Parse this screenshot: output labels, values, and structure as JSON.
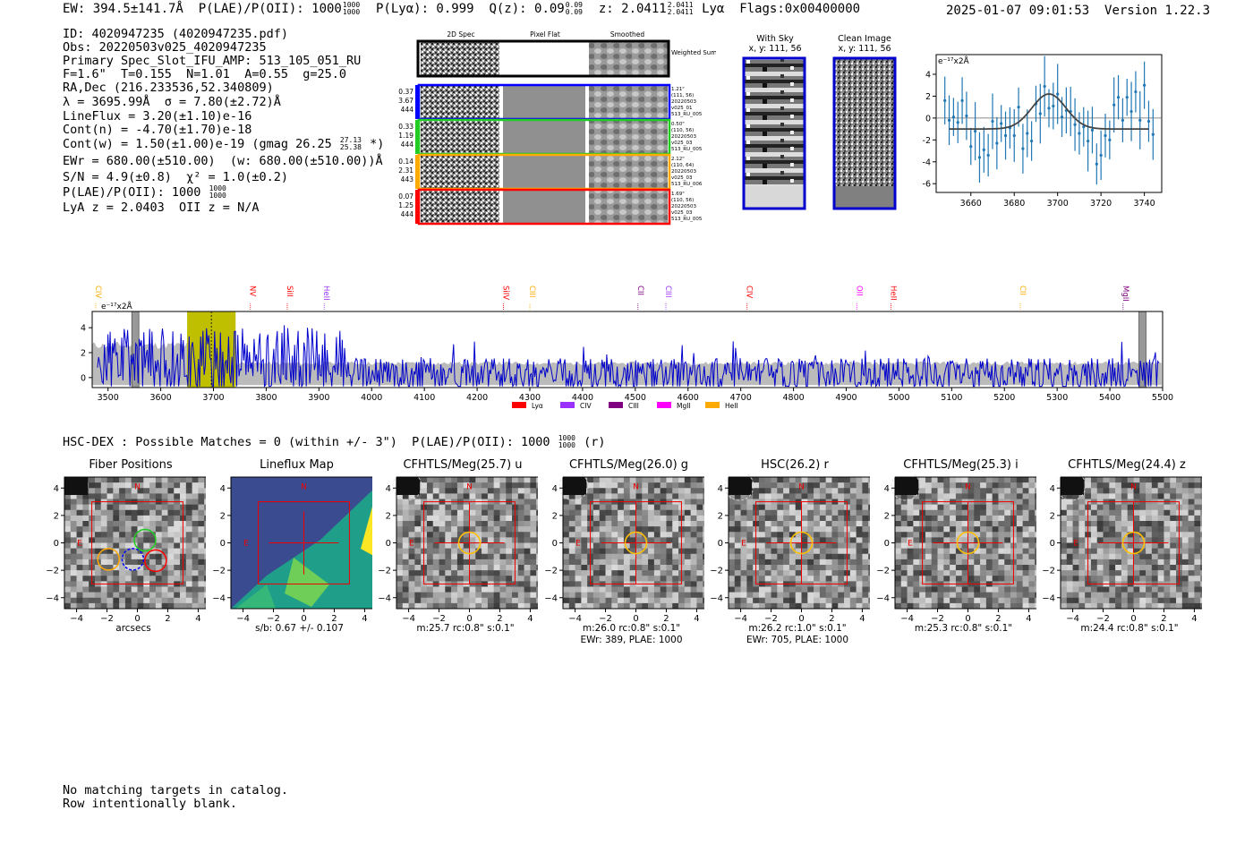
{
  "header": {
    "ew": "EW: 394.5±141.7Å",
    "plae_label": "P(LAE)/P(OII): 1000",
    "plae_hi": "1000",
    "plae_lo": "1000",
    "plya": "P(Lyα): 0.999",
    "qz_label": "Q(z): 0.09",
    "qz_hi": "0.09",
    "qz_lo": "0.09",
    "z_label": "z: 2.0411",
    "z_hi": "2.0411",
    "z_lo": "2.0411",
    "line_name": "Lyα",
    "flags": "Flags:0x00400000",
    "timestamp": "2025-01-07 09:01:53",
    "version": "Version 1.22.3"
  },
  "info": {
    "id": "ID: 4020947235 (4020947235.pdf)",
    "obs": "Obs: 20220503v025_4020947235",
    "primary": "Primary Spec_Slot_IFU_AMP: 513_105_051_RU",
    "fiber_params": "F=1.6\"  T=0.155  N=1.01  A=0.55  g=25.0",
    "radec": "RA,Dec (216.233536,52.340809)",
    "lambda_sigma": "λ = 3695.99Å  σ = 7.80(±2.72)Å",
    "lineflux": "LineFlux = 3.20(±1.10)e-16",
    "cont_n": "Cont(n) = -4.70(±1.70)e-18",
    "cont_w": "Cont(w) = 1.50(±1.00)e-19 (gmag 26.25",
    "gmag_hi": "27.13",
    "gmag_lo": "25.38",
    "cont_w_end": "*)",
    "ewr": "EWr = 680.00(±510.00)  (w: 680.00(±510.00))Å",
    "sn": "S/N = 4.9(±0.8)  χ² = 1.0(±0.2)",
    "plae": "P(LAE)/P(OII): 1000",
    "plae_hi": "1000",
    "plae_lo": "1000",
    "lya_z": "LyA z = 2.0403  OII z = N/A"
  },
  "cutout_panel": {
    "col_titles": [
      "2D Spec",
      "Pixel Flat",
      "Smoothed"
    ],
    "weighted_label": "Weighted Sum",
    "rows": [
      {
        "left": [
          "0.37",
          "3.67",
          "444"
        ],
        "right": [
          "1.21\"",
          "(111, 56)",
          "20220503",
          "v025_01",
          "513_RU_005"
        ],
        "color": "#0000ff"
      },
      {
        "left": [
          "0.33",
          "1.19",
          "444"
        ],
        "right": [
          "0.50\"",
          "(110, 56)",
          "20220503",
          "v025_03",
          "513_RU_005"
        ],
        "color": "#22cc22"
      },
      {
        "left": [
          "0.14",
          "2.31",
          "443"
        ],
        "right": [
          "2.12\"",
          "(110, 64)",
          "20220503",
          "v025_03",
          "513_RU_006"
        ],
        "color": "#ffaa00"
      },
      {
        "left": [
          "0.07",
          "1.25",
          "444"
        ],
        "right": [
          "1.69\"",
          "(110, 56)",
          "20220503",
          "v025_03",
          "513_RU_005"
        ],
        "color": "#ff0000"
      }
    ]
  },
  "sky_panel": {
    "with_sky_title": "With Sky",
    "with_sky_coord": "x, y: 111, 56",
    "clean_title": "Clean Image",
    "clean_coord": "x, y: 111, 56"
  },
  "zoom_plot": {
    "ylabel": "e⁻¹⁷x2Å",
    "xticks": [
      "3660",
      "3680",
      "3700",
      "3720",
      "3740"
    ],
    "yticks": [
      "4",
      "2",
      "0",
      "-2",
      "-4",
      "-6"
    ],
    "colors": {
      "points": "#1f77b4",
      "fit": "#444444"
    },
    "xlim": [
      3644,
      3748
    ],
    "ylim": [
      -6.8,
      5.8
    ],
    "points": [
      {
        "x": 3648,
        "y": 1.6
      },
      {
        "x": 3650,
        "y": -0.2
      },
      {
        "x": 3652,
        "y": 0.1
      },
      {
        "x": 3654,
        "y": -0.4
      },
      {
        "x": 3656,
        "y": 1.6
      },
      {
        "x": 3658,
        "y": 0.2
      },
      {
        "x": 3660,
        "y": -2.6
      },
      {
        "x": 3662,
        "y": -1.2
      },
      {
        "x": 3664,
        "y": -3.6
      },
      {
        "x": 3666,
        "y": -2.9
      },
      {
        "x": 3668,
        "y": -3.4
      },
      {
        "x": 3670,
        "y": -0.3
      },
      {
        "x": 3672,
        "y": -2.3
      },
      {
        "x": 3674,
        "y": -0.5
      },
      {
        "x": 3676,
        "y": -1.6
      },
      {
        "x": 3678,
        "y": -0.9
      },
      {
        "x": 3680,
        "y": -1.6
      },
      {
        "x": 3682,
        "y": 1.0
      },
      {
        "x": 3684,
        "y": -2.8
      },
      {
        "x": 3686,
        "y": -1.4
      },
      {
        "x": 3688,
        "y": -2.1
      },
      {
        "x": 3690,
        "y": 1.3
      },
      {
        "x": 3692,
        "y": 0.4
      },
      {
        "x": 3694,
        "y": 2.9
      },
      {
        "x": 3696,
        "y": 0.9
      },
      {
        "x": 3698,
        "y": 1.1
      },
      {
        "x": 3700,
        "y": 2.2
      },
      {
        "x": 3702,
        "y": 0.1
      },
      {
        "x": 3704,
        "y": 0.7
      },
      {
        "x": 3706,
        "y": 0.6
      },
      {
        "x": 3708,
        "y": -0.6
      },
      {
        "x": 3710,
        "y": -1.4
      },
      {
        "x": 3712,
        "y": -0.8
      },
      {
        "x": 3714,
        "y": -2.1
      },
      {
        "x": 3716,
        "y": -1.1
      },
      {
        "x": 3718,
        "y": -4.2
      },
      {
        "x": 3720,
        "y": -3.4
      },
      {
        "x": 3722,
        "y": -1.6
      },
      {
        "x": 3724,
        "y": -2.0
      },
      {
        "x": 3726,
        "y": 1.2
      },
      {
        "x": 3728,
        "y": 1.9
      },
      {
        "x": 3730,
        "y": -0.2
      },
      {
        "x": 3732,
        "y": 1.9
      },
      {
        "x": 3734,
        "y": 0.6
      },
      {
        "x": 3736,
        "y": 2.4
      },
      {
        "x": 3738,
        "y": -0.2
      },
      {
        "x": 3740,
        "y": 3.0
      },
      {
        "x": 3742,
        "y": -0.3
      },
      {
        "x": 3744,
        "y": -1.5
      }
    ],
    "fit": {
      "base": -1.0,
      "amp": 3.2,
      "center": 3696,
      "sigma": 7.8,
      "x0": 3650,
      "x1": 3742
    }
  },
  "full_spectrum": {
    "ylabel": "e⁻¹⁷x2Å",
    "xticks": [
      "3500",
      "3600",
      "3700",
      "3800",
      "3900",
      "4000",
      "4100",
      "4200",
      "4300",
      "4400",
      "4500",
      "4600",
      "4700",
      "4800",
      "4900",
      "5000",
      "5100",
      "5200",
      "5300",
      "5400",
      "5500"
    ],
    "yticks": [
      "4",
      "2",
      "0"
    ],
    "xlim": [
      3470,
      5500
    ],
    "ylim": [
      -0.8,
      5.3
    ],
    "line_labels": [
      {
        "text": "CIV",
        "x": 3464,
        "color": "#ffaa00"
      },
      {
        "text": "NV",
        "x": 3770,
        "color": "#ff0000"
      },
      {
        "text": "SiII",
        "x": 3840,
        "color": "#ff0000"
      },
      {
        "text": "HeII",
        "x": 3910,
        "color": "#9b30ff"
      },
      {
        "text": "SiIV",
        "x": 4250,
        "color": "#ff0000"
      },
      {
        "text": "CIII",
        "x": 4300,
        "color": "#ffaa00"
      },
      {
        "text": "CII",
        "x": 4505,
        "color": "#800080"
      },
      {
        "text": "CIII",
        "x": 4558,
        "color": "#9b30ff"
      },
      {
        "text": "CIV",
        "x": 4712,
        "color": "#ff0000"
      },
      {
        "text": "OII",
        "x": 4920,
        "color": "#ff00ff"
      },
      {
        "text": "HeII",
        "x": 4985,
        "color": "#ff0000"
      },
      {
        "text": "CII",
        "x": 5230,
        "color": "#ffaa00"
      },
      {
        "text": "MgII",
        "x": 5425,
        "color": "#800080"
      }
    ],
    "legend": [
      {
        "label": "Lyα",
        "color": "#ff0000"
      },
      {
        "label": "CIV",
        "color": "#9b30ff"
      },
      {
        "label": "CIII",
        "color": "#800080"
      },
      {
        "label": "MgII",
        "color": "#ff00ff"
      },
      {
        "label": "HeII",
        "color": "#ffaa00"
      }
    ],
    "highlight": {
      "x0": 3650,
      "x1": 3742,
      "center": 3696,
      "color": "#bfbf00"
    }
  },
  "hsc": {
    "text": "HSC-DEX : Possible Matches = 0 (within +/- 3\")  P(LAE)/P(OII): 1000",
    "hi": "1000",
    "lo": "1000",
    "end": "(r)"
  },
  "cutouts": [
    {
      "title": "Fiber Positions",
      "caption": [
        "arcsecs"
      ],
      "type": "fiber"
    },
    {
      "title": "Lineflux Map",
      "caption": [
        "s/b: 0.67 +/- 0.107"
      ],
      "type": "lineflux"
    },
    {
      "title": "CFHTLS/Meg(25.7) u",
      "caption": [
        "m:25.7 rc:0.8\"  s:0.1\""
      ],
      "type": "img"
    },
    {
      "title": "CFHTLS/Meg(26.0) g",
      "caption": [
        "m:26.0 rc:0.8\"  s:0.1\"",
        "EWr: 389, PLAE: 1000"
      ],
      "type": "img"
    },
    {
      "title": "HSC(26.2) r",
      "caption": [
        "m:26.2 rc:1.0\"  s:0.1\"",
        "EWr: 705, PLAE: 1000"
      ],
      "type": "img"
    },
    {
      "title": "CFHTLS/Meg(25.3) i",
      "caption": [
        "m:25.3 rc:0.8\"  s:0.1\""
      ],
      "type": "img"
    },
    {
      "title": "CFHTLS/Meg(24.4) z",
      "caption": [
        "m:24.4 rc:0.8\"  s:0.1\""
      ],
      "type": "img"
    }
  ],
  "cutout_axes": {
    "xticks": [
      "−4",
      "−2",
      "0",
      "2",
      "4"
    ],
    "yticks": [
      "4",
      "2",
      "0",
      "−2",
      "−4"
    ],
    "north": "N",
    "east": "E"
  },
  "notes": {
    "line1": "No matching targets in catalog.",
    "line2": "Row intentionally blank."
  }
}
